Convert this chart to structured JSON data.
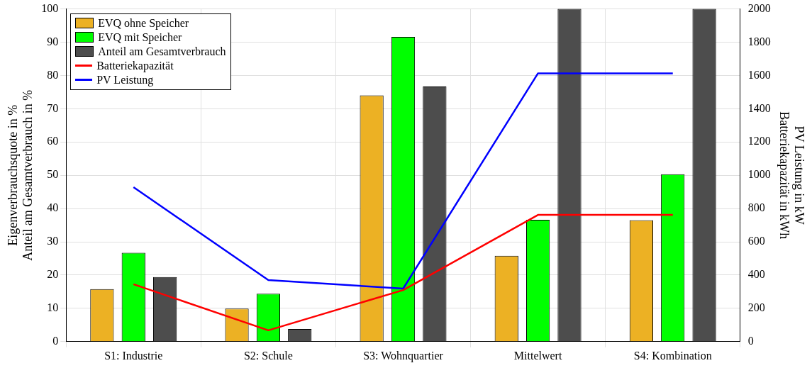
{
  "chart_data": {
    "type": "bar",
    "ylabel": "Eigenverbrauchsquote in %\nAnteil am Gesamtverbrauch in %",
    "y2label": "PV Leistung in kW\nBatteriekapazität in kWh",
    "categories": [
      "S1: Industrie",
      "S2: Schule",
      "S3: Wohnquartier",
      "Mittelwert",
      "S4: Kombination"
    ],
    "series": [
      {
        "name": "EVQ ohne Speicher",
        "color": "#ecb124",
        "values": [
          15.8,
          9.9,
          74.0,
          25.8,
          36.5
        ]
      },
      {
        "name": "EVQ mit Speicher",
        "color": "#00ff00",
        "values": [
          26.7,
          14.4,
          91.6,
          36.6,
          50.3
        ]
      },
      {
        "name": "Anteil am Gesamtverbrauch",
        "color": "#4d4d4d",
        "values": [
          19.4,
          3.8,
          76.7,
          100,
          100
        ]
      },
      {
        "name": "Batteriekapazität",
        "type": "line",
        "axis": "y2",
        "color": "#ff0000",
        "values": [
          345,
          68,
          310,
          762,
          762
        ]
      },
      {
        "name": "PV Leistung",
        "type": "line",
        "axis": "y2",
        "color": "#0000ff",
        "values": [
          928,
          370,
          319,
          1613,
          1613
        ]
      }
    ],
    "ylim": [
      0,
      100
    ],
    "yticks": [
      0,
      10,
      20,
      30,
      40,
      50,
      60,
      70,
      80,
      90,
      100
    ],
    "y2lim": [
      0,
      2000
    ],
    "y2ticks": [
      0,
      200,
      400,
      600,
      800,
      1000,
      1200,
      1400,
      1600,
      1800,
      2000
    ],
    "grid": true,
    "legend": "top left",
    "marker": "none",
    "line_style": "solid"
  }
}
